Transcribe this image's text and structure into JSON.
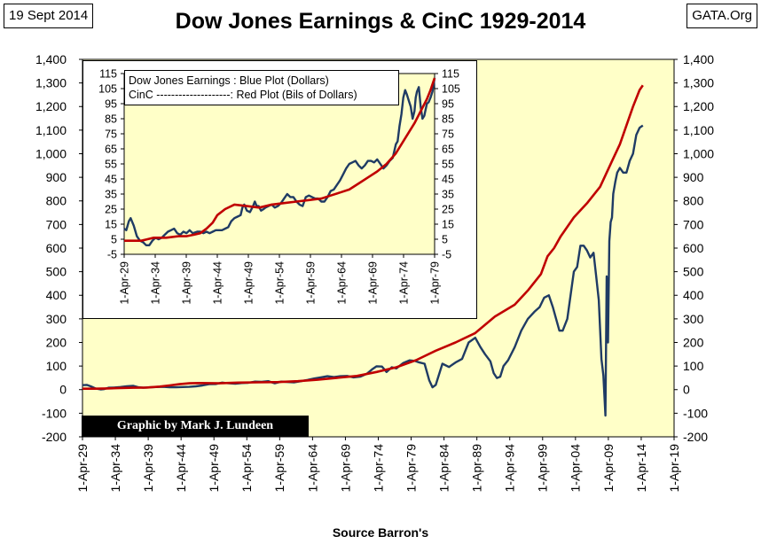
{
  "header": {
    "date": "19 Sept 2014",
    "title": "Dow Jones Earnings & CinC 1929-2014",
    "site": "GATA.Org"
  },
  "credit": "Graphic by Mark J. Lundeen",
  "footer": {
    "source": "Source Barron's"
  },
  "colors": {
    "earnings": "#1f3b64",
    "cinc": "#c00000",
    "plot_bg": "#ffffc8",
    "credit_bg": "#000000"
  },
  "chart_data": [
    {
      "id": "main",
      "type": "line",
      "title": "Dow Jones Earnings & CinC 1929-2014",
      "xlabel": "Source Barron's",
      "grid": false,
      "ylim": [
        -200,
        1400
      ],
      "y_ticks": [
        "-200",
        "-100",
        "0",
        "100",
        "200",
        "300",
        "400",
        "500",
        "600",
        "700",
        "800",
        "900",
        "1,000",
        "1,100",
        "1,200",
        "1,300",
        "1,400"
      ],
      "y_tick_values": [
        -200,
        -100,
        0,
        100,
        200,
        300,
        400,
        500,
        600,
        700,
        800,
        900,
        1000,
        1100,
        1200,
        1300,
        1400
      ],
      "xlim": [
        1929.25,
        2019.25
      ],
      "x_ticks": [
        "1-Apr-29",
        "1-Apr-34",
        "1-Apr-39",
        "1-Apr-44",
        "1-Apr-49",
        "1-Apr-54",
        "1-Apr-59",
        "1-Apr-64",
        "1-Apr-69",
        "1-Apr-74",
        "1-Apr-79",
        "1-Apr-84",
        "1-Apr-89",
        "1-Apr-94",
        "1-Apr-99",
        "1-Apr-04",
        "1-Apr-09",
        "1-Apr-14",
        "1-Apr-19"
      ],
      "x_tick_values": [
        1929.25,
        1934.25,
        1939.25,
        1944.25,
        1949.25,
        1954.25,
        1959.25,
        1964.25,
        1969.25,
        1974.25,
        1979.25,
        1984.25,
        1989.25,
        1994.25,
        1999.25,
        2004.25,
        2009.25,
        2014.25,
        2019.25
      ],
      "series": [
        {
          "name": "Dow Jones Earnings",
          "color": "#1f3b64",
          "x": [
            1929.25,
            1929.9,
            1930.5,
            1931.2,
            1932.0,
            1932.5,
            1933.2,
            1934.0,
            1935.0,
            1936.0,
            1937.0,
            1937.8,
            1938.5,
            1939.5,
            1940.5,
            1941.5,
            1942.5,
            1943.5,
            1944.5,
            1945.5,
            1946.5,
            1947.5,
            1948.5,
            1949.5,
            1950.5,
            1951.5,
            1952.5,
            1953.5,
            1954.5,
            1955.5,
            1956.5,
            1957.5,
            1958.5,
            1959.5,
            1960.5,
            1961.5,
            1962.5,
            1963.5,
            1964.5,
            1965.5,
            1966.5,
            1967.5,
            1968.5,
            1969.5,
            1970.5,
            1971.5,
            1972.5,
            1973.3,
            1974.0,
            1974.8,
            1975.5,
            1976.3,
            1977.0,
            1978.0,
            1979.0,
            1979.8,
            1980.5,
            1981.3,
            1982.0,
            1982.5,
            1983.0,
            1984.0,
            1985.0,
            1986.0,
            1987.0,
            1988.0,
            1989.0,
            1989.8,
            1990.5,
            1991.3,
            1991.8,
            1992.3,
            1992.8,
            1993.3,
            1994.0,
            1995.0,
            1996.0,
            1997.0,
            1998.0,
            1998.8,
            1999.5,
            2000.2,
            2000.8,
            2001.3,
            2001.8,
            2002.3,
            2003.0,
            2003.5,
            2004.0,
            2004.5,
            2005.0,
            2005.5,
            2006.0,
            2006.5,
            2007.0,
            2007.4,
            2007.8,
            2008.2,
            2008.5,
            2008.8,
            2009.0,
            2009.2,
            2009.4,
            2009.6,
            2009.8,
            2010.0,
            2010.3,
            2010.6,
            2011.0,
            2011.5,
            2012.0,
            2012.5,
            2013.0,
            2013.5,
            2014.0,
            2014.5
          ],
          "values": [
            19,
            20,
            14,
            5,
            1,
            2,
            8,
            9,
            11,
            14,
            16,
            10,
            8,
            10,
            11,
            12,
            10,
            10,
            11,
            12,
            14,
            18,
            23,
            24,
            30,
            27,
            25,
            28,
            29,
            34,
            33,
            36,
            27,
            34,
            32,
            31,
            36,
            41,
            47,
            52,
            57,
            53,
            57,
            58,
            52,
            55,
            67,
            86,
            99,
            98,
            75,
            95,
            90,
            112,
            124,
            122,
            115,
            110,
            40,
            10,
            20,
            110,
            96,
            115,
            130,
            200,
            220,
            180,
            150,
            120,
            70,
            49,
            55,
            100,
            125,
            180,
            250,
            300,
            330,
            350,
            390,
            400,
            350,
            300,
            250,
            250,
            300,
            400,
            500,
            520,
            610,
            610,
            590,
            560,
            580,
            480,
            380,
            130,
            60,
            -110,
            480,
            200,
            630,
            710,
            730,
            830,
            880,
            920,
            940,
            920,
            920,
            970,
            1000,
            1080,
            1110,
            1120
          ]
        },
        {
          "name": "CinC",
          "color": "#c00000",
          "x": [
            1929.25,
            1931.0,
            1933.0,
            1935.0,
            1937.0,
            1939.0,
            1941.0,
            1942.5,
            1944.0,
            1945.5,
            1947.0,
            1950.0,
            1953.0,
            1956.0,
            1959.0,
            1962.0,
            1965.0,
            1968.0,
            1971.0,
            1974.0,
            1977.0,
            1980.0,
            1983.0,
            1986.0,
            1989.0,
            1992.0,
            1995.0,
            1997.0,
            1999.0,
            2000.0,
            2001.0,
            2002.0,
            2004.0,
            2006.0,
            2008.0,
            2009.0,
            2010.0,
            2011.0,
            2012.0,
            2013.0,
            2014.0,
            2014.5
          ],
          "values": [
            4,
            4,
            5,
            7,
            8,
            9,
            13,
            18,
            23,
            27,
            28,
            27,
            30,
            31,
            32,
            36,
            42,
            50,
            58,
            75,
            95,
            125,
            165,
            200,
            240,
            310,
            360,
            420,
            490,
            565,
            600,
            650,
            730,
            790,
            860,
            920,
            980,
            1040,
            1120,
            1200,
            1270,
            1290
          ]
        }
      ]
    },
    {
      "id": "inset",
      "type": "line",
      "legend_position": "top-left",
      "ylim": [
        -5,
        115
      ],
      "y_ticks": [
        "-5",
        "5",
        "15",
        "25",
        "35",
        "45",
        "55",
        "65",
        "75",
        "85",
        "95",
        "105",
        "115"
      ],
      "y_tick_values": [
        -5,
        5,
        15,
        25,
        35,
        45,
        55,
        65,
        75,
        85,
        95,
        105,
        115
      ],
      "xlim": [
        1929.25,
        1979.25
      ],
      "x_ticks": [
        "1-Apr-29",
        "1-Apr-34",
        "1-Apr-39",
        "1-Apr-44",
        "1-Apr-49",
        "1-Apr-54",
        "1-Apr-59",
        "1-Apr-64",
        "1-Apr-69",
        "1-Apr-74",
        "1-Apr-79"
      ],
      "x_tick_values": [
        1929.25,
        1934.25,
        1939.25,
        1944.25,
        1949.25,
        1954.25,
        1959.25,
        1964.25,
        1969.25,
        1974.25,
        1979.25
      ],
      "legend": [
        "Dow Jones Earnings : Blue Plot (Dollars)",
        "CinC --------------------:  Red Plot (Bils of Dollars)"
      ],
      "series": [
        {
          "name": "Dow Jones Earnings",
          "color": "#1f3b64",
          "x": [
            1929.25,
            1929.6,
            1930.0,
            1930.3,
            1930.8,
            1931.3,
            1931.8,
            1932.3,
            1932.8,
            1933.3,
            1933.8,
            1934.3,
            1934.8,
            1935.3,
            1935.8,
            1936.3,
            1936.8,
            1937.3,
            1937.8,
            1938.3,
            1938.8,
            1939.3,
            1939.8,
            1940.3,
            1941.0,
            1941.5,
            1942.0,
            1942.5,
            1943.0,
            1943.5,
            1944.0,
            1945.0,
            1946.0,
            1946.5,
            1947.0,
            1947.5,
            1948.0,
            1948.3,
            1948.6,
            1949.0,
            1949.5,
            1950.0,
            1950.3,
            1950.6,
            1950.9,
            1951.3,
            1951.7,
            1952.0,
            1952.5,
            1953.0,
            1953.5,
            1954.0,
            1954.5,
            1955.0,
            1955.5,
            1956.0,
            1956.5,
            1957.0,
            1957.5,
            1958.0,
            1958.5,
            1959.0,
            1959.5,
            1960.0,
            1960.5,
            1961.0,
            1961.5,
            1962.0,
            1962.5,
            1963.0,
            1963.5,
            1964.0,
            1964.5,
            1965.0,
            1965.5,
            1966.0,
            1966.5,
            1967.0,
            1967.5,
            1968.0,
            1968.5,
            1969.0,
            1969.5,
            1970.0,
            1970.5,
            1971.0,
            1971.5,
            1972.0,
            1972.5,
            1973.0,
            1973.3,
            1973.6,
            1973.9,
            1974.2,
            1974.5,
            1974.8,
            1975.1,
            1975.4,
            1975.7,
            1976.0,
            1976.2,
            1976.4,
            1976.7,
            1977.0,
            1977.3,
            1977.6,
            1978.0,
            1978.3,
            1978.6,
            1978.9,
            1979.25
          ],
          "values": [
            12,
            11,
            17,
            19,
            14,
            7,
            4,
            3,
            1,
            1,
            4,
            6,
            5,
            6,
            8,
            10,
            11,
            12,
            9,
            8,
            10,
            9,
            11,
            9,
            10,
            10,
            9,
            10,
            9,
            10,
            11,
            11,
            13,
            17,
            19,
            20,
            21,
            26,
            28,
            24,
            23,
            27,
            30,
            27,
            27,
            24,
            25,
            26,
            27,
            28,
            26,
            27,
            29,
            32,
            35,
            33,
            33,
            30,
            28,
            27,
            33,
            34,
            33,
            32,
            32,
            30,
            30,
            33,
            37,
            38,
            41,
            44,
            48,
            52,
            55,
            56,
            57,
            54,
            52,
            54,
            57,
            57,
            56,
            58,
            55,
            52,
            54,
            57,
            59,
            68,
            70,
            80,
            88,
            99,
            104,
            101,
            97,
            93,
            85,
            90,
            99,
            103,
            106,
            93,
            85,
            87,
            95,
            96,
            99,
            103,
            112
          ]
        },
        {
          "name": "CinC",
          "color": "#c00000",
          "x": [
            1929.25,
            1930.5,
            1932.0,
            1933.0,
            1934.0,
            1936.0,
            1938.0,
            1939.25,
            1940.5,
            1941.5,
            1942.5,
            1943.5,
            1944.25,
            1945.5,
            1947.0,
            1949.0,
            1951.0,
            1953.0,
            1955.0,
            1957.0,
            1959.0,
            1961.0,
            1962.5,
            1964.0,
            1965.5,
            1967.0,
            1968.5,
            1970.0,
            1971.5,
            1973.0,
            1974.5,
            1976.0,
            1977.0,
            1978.0,
            1978.6,
            1979.25
          ],
          "values": [
            4,
            4,
            4,
            5,
            6,
            6,
            7,
            7,
            8,
            9,
            12,
            16,
            21,
            25,
            28,
            27,
            26,
            28,
            29,
            30,
            31,
            32,
            34,
            36,
            38,
            42,
            46,
            50,
            55,
            62,
            72,
            82,
            90,
            98,
            104,
            112
          ]
        }
      ]
    }
  ]
}
